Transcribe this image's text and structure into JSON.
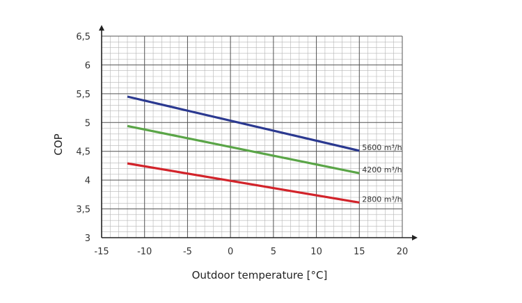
{
  "chart_data": {
    "type": "line",
    "title": "",
    "xlabel": "Outdoor temperature [°C]",
    "ylabel": "COP",
    "xlim": [
      -15,
      20
    ],
    "ylim": [
      3,
      6.5
    ],
    "x_ticks": [
      -15,
      -10,
      -5,
      0,
      5,
      10,
      15,
      20
    ],
    "x_tick_labels": [
      "-15",
      "-10",
      "-5",
      "0",
      "5",
      "10",
      "15",
      "20"
    ],
    "y_ticks": [
      3,
      3.5,
      4,
      4.5,
      5,
      5.5,
      6,
      6.5
    ],
    "y_tick_labels": [
      "3",
      "3,5",
      "4",
      "4,5",
      "5",
      "5,5",
      "6",
      "6,5"
    ],
    "grid": true,
    "minor_grid_x_step": 1,
    "minor_grid_y_step": 0.1,
    "series": [
      {
        "name": "5600 m³/h",
        "color": "#2b3990",
        "x": [
          -12,
          15
        ],
        "y": [
          5.45,
          4.51
        ]
      },
      {
        "name": "4200 m³/h",
        "color": "#5aa547",
        "x": [
          -12,
          15
        ],
        "y": [
          4.94,
          4.12
        ]
      },
      {
        "name": "2800 m³/h",
        "color": "#d2232a",
        "x": [
          -12,
          15
        ],
        "y": [
          4.29,
          3.61
        ]
      }
    ]
  }
}
